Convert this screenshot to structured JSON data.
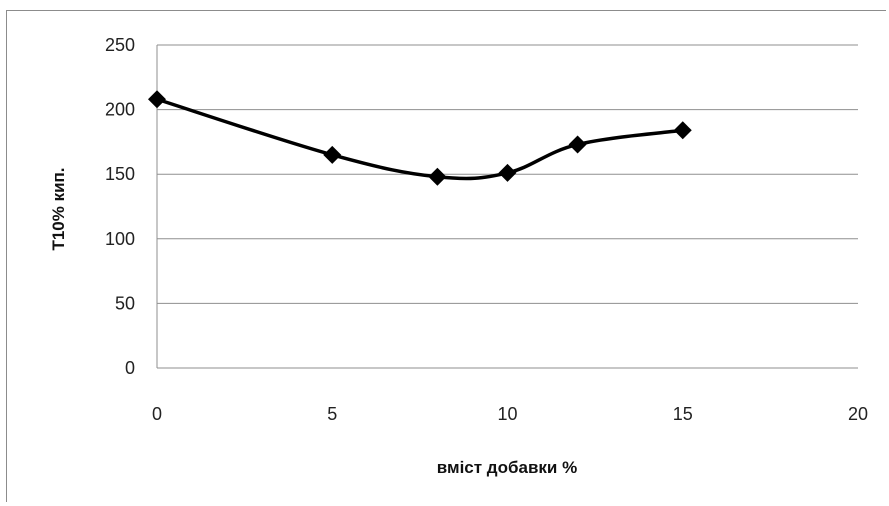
{
  "chart_data": {
    "type": "line",
    "title": "",
    "xlabel": "вміст добавки %",
    "ylabel": "Т10% кип.",
    "xlim": [
      0,
      20
    ],
    "ylim": [
      0,
      250
    ],
    "x_ticks": [
      "0",
      "5",
      "10",
      "15",
      "20"
    ],
    "y_ticks": [
      "0",
      "50",
      "100",
      "150",
      "200",
      "250"
    ],
    "grid": "horizontal",
    "legend": "none",
    "series": [
      {
        "color": "#000000",
        "marker": "diamond",
        "smooth": true,
        "points": [
          {
            "x": 0,
            "y": 208
          },
          {
            "x": 5,
            "y": 165
          },
          {
            "x": 8,
            "y": 148
          },
          {
            "x": 10,
            "y": 151
          },
          {
            "x": 12,
            "y": 173
          },
          {
            "x": 15,
            "y": 184
          }
        ]
      }
    ]
  }
}
